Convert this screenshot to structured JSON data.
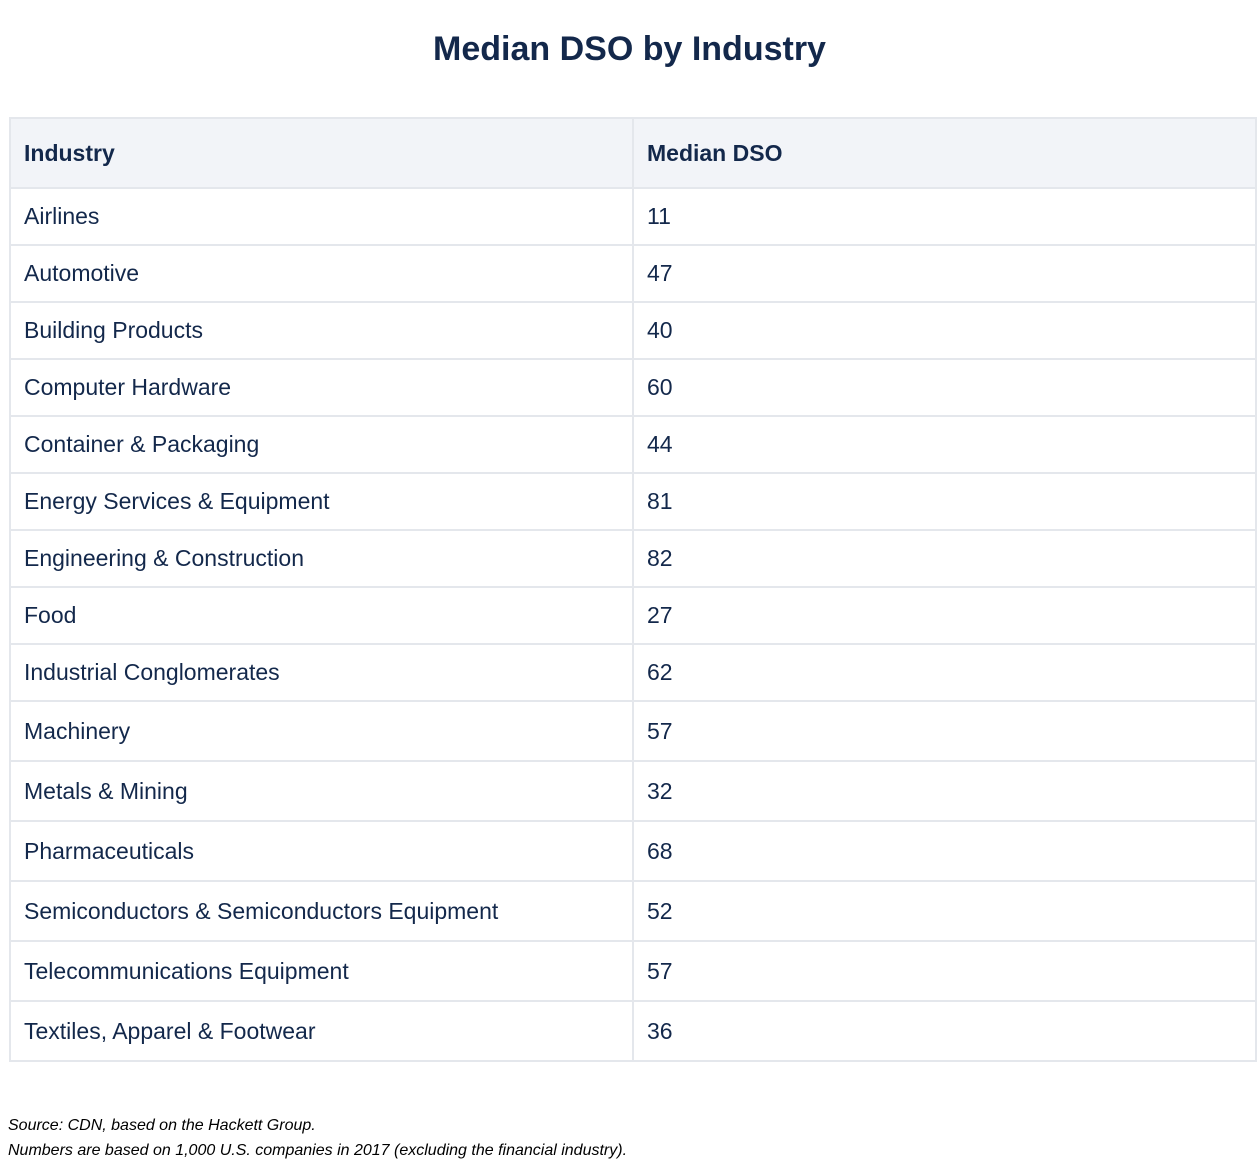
{
  "title": "Median DSO by Industry",
  "table": {
    "headers": [
      "Industry",
      "Median DSO"
    ],
    "rows": [
      {
        "industry": "Airlines",
        "dso": "11"
      },
      {
        "industry": "Automotive",
        "dso": "47"
      },
      {
        "industry": "Building Products",
        "dso": "40"
      },
      {
        "industry": "Computer Hardware",
        "dso": "60"
      },
      {
        "industry": "Container & Packaging",
        "dso": "44"
      },
      {
        "industry": "Energy Services & Equipment",
        "dso": "81"
      },
      {
        "industry": "Engineering & Construction",
        "dso": "82"
      },
      {
        "industry": "Food",
        "dso": "27"
      },
      {
        "industry": "Industrial Conglomerates",
        "dso": "62"
      },
      {
        "industry": "Machinery",
        "dso": "57"
      },
      {
        "industry": "Metals & Mining",
        "dso": "32"
      },
      {
        "industry": "Pharmaceuticals",
        "dso": "68"
      },
      {
        "industry": "Semiconductors & Semiconductors Equipment",
        "dso": "52"
      },
      {
        "industry": "Telecommunications Equipment",
        "dso": "57"
      },
      {
        "industry": "Textiles, Apparel & Footwear",
        "dso": "36"
      }
    ]
  },
  "footnotes": {
    "source": "Source: CDN, based on the Hackett Group.",
    "note": "Numbers are based on 1,000 U.S. companies in 2017 (excluding the financial industry)."
  }
}
